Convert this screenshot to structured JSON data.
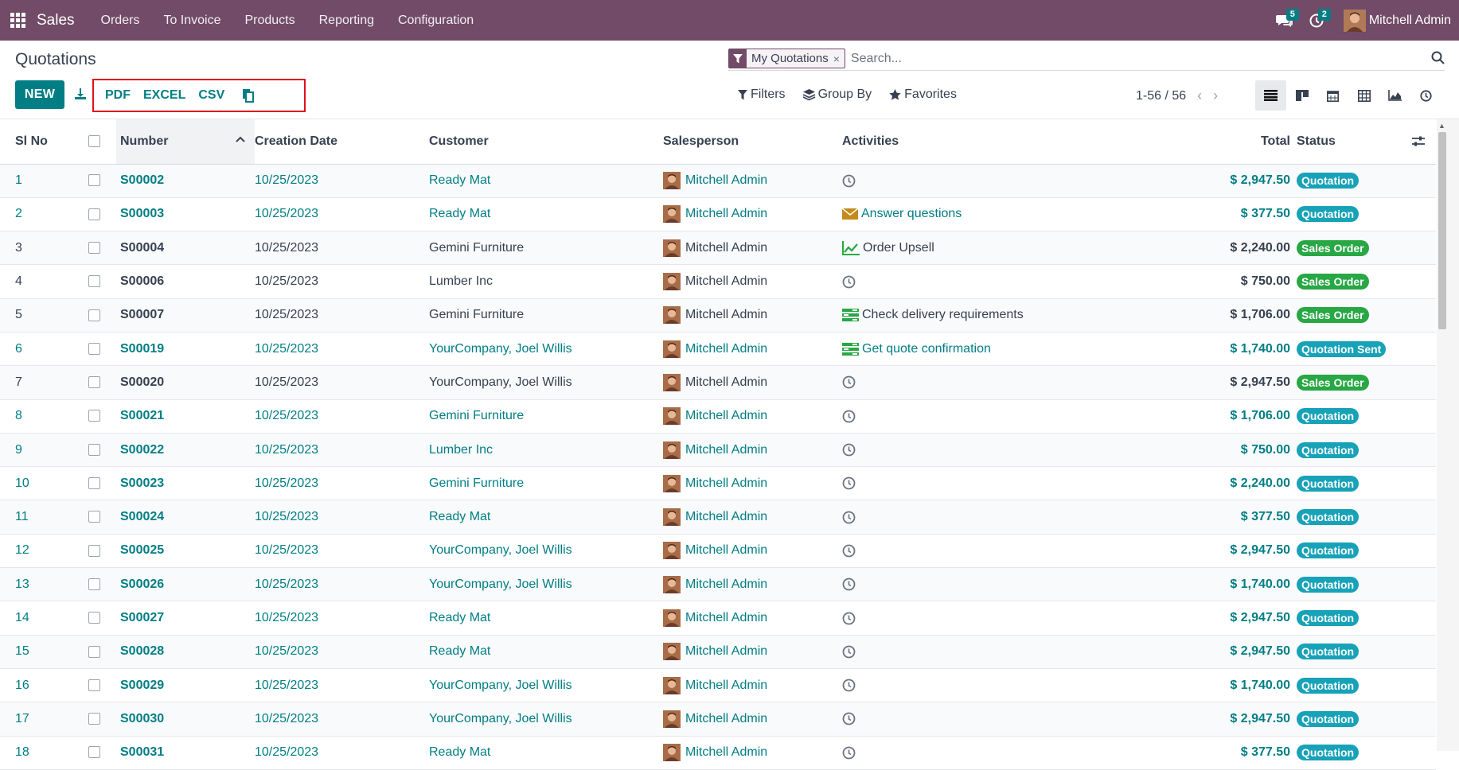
{
  "navbar": {
    "app_name": "Sales",
    "menu": [
      "Orders",
      "To Invoice",
      "Products",
      "Reporting",
      "Configuration"
    ],
    "messages_count": "5",
    "activities_count": "2",
    "user_name": "Mitchell Admin"
  },
  "control_panel": {
    "title": "Quotations",
    "new_label": "NEW",
    "export_buttons": [
      "PDF",
      "EXCEL",
      "CSV"
    ],
    "search": {
      "facet": "My Quotations",
      "placeholder": "Search..."
    },
    "filters_label": "Filters",
    "groupby_label": "Group By",
    "favorites_label": "Favorites",
    "pager": "1-56 / 56"
  },
  "table": {
    "headers": {
      "sl": "Sl No",
      "number": "Number",
      "date": "Creation Date",
      "customer": "Customer",
      "salesperson": "Salesperson",
      "activities": "Activities",
      "total": "Total",
      "status": "Status"
    },
    "rows": [
      {
        "sl": "1",
        "number": "S00002",
        "date": "10/25/2023",
        "customer": "Ready Mat",
        "salesperson": "Mitchell Admin",
        "activity": "",
        "activity_icon": "clock-icon",
        "total": "$ 2,947.50",
        "status": "Quotation",
        "status_color": "#17a2b8",
        "linked": true
      },
      {
        "sl": "2",
        "number": "S00003",
        "date": "10/25/2023",
        "customer": "Ready Mat",
        "salesperson": "Mitchell Admin",
        "activity": "Answer questions",
        "activity_icon": "envelope-icon",
        "total": "$ 377.50",
        "status": "Quotation",
        "status_color": "#17a2b8",
        "linked": true
      },
      {
        "sl": "3",
        "number": "S00004",
        "date": "10/25/2023",
        "customer": "Gemini Furniture",
        "salesperson": "Mitchell Admin",
        "activity": "Order Upsell",
        "activity_icon": "chart-line-icon",
        "total": "$ 2,240.00",
        "status": "Sales Order",
        "status_color": "#28a745",
        "linked": false
      },
      {
        "sl": "4",
        "number": "S00006",
        "date": "10/25/2023",
        "customer": "Lumber Inc",
        "salesperson": "Mitchell Admin",
        "activity": "",
        "activity_icon": "clock-icon",
        "total": "$ 750.00",
        "status": "Sales Order",
        "status_color": "#28a745",
        "linked": false
      },
      {
        "sl": "5",
        "number": "S00007",
        "date": "10/25/2023",
        "customer": "Gemini Furniture",
        "salesperson": "Mitchell Admin",
        "activity": "Check delivery requirements",
        "activity_icon": "tasks-icon",
        "total": "$ 1,706.00",
        "status": "Sales Order",
        "status_color": "#28a745",
        "linked": false
      },
      {
        "sl": "6",
        "number": "S00019",
        "date": "10/25/2023",
        "customer": "YourCompany, Joel Willis",
        "salesperson": "Mitchell Admin",
        "activity": "Get quote confirmation",
        "activity_icon": "tasks-icon",
        "total": "$ 1,740.00",
        "status": "Quotation Sent",
        "status_color": "#17a2b8",
        "linked": true
      },
      {
        "sl": "7",
        "number": "S00020",
        "date": "10/25/2023",
        "customer": "YourCompany, Joel Willis",
        "salesperson": "Mitchell Admin",
        "activity": "",
        "activity_icon": "clock-icon",
        "total": "$ 2,947.50",
        "status": "Sales Order",
        "status_color": "#28a745",
        "linked": false
      },
      {
        "sl": "8",
        "number": "S00021",
        "date": "10/25/2023",
        "customer": "Gemini Furniture",
        "salesperson": "Mitchell Admin",
        "activity": "",
        "activity_icon": "clock-icon",
        "total": "$ 1,706.00",
        "status": "Quotation",
        "status_color": "#17a2b8",
        "linked": true
      },
      {
        "sl": "9",
        "number": "S00022",
        "date": "10/25/2023",
        "customer": "Lumber Inc",
        "salesperson": "Mitchell Admin",
        "activity": "",
        "activity_icon": "clock-icon",
        "total": "$ 750.00",
        "status": "Quotation",
        "status_color": "#17a2b8",
        "linked": true
      },
      {
        "sl": "10",
        "number": "S00023",
        "date": "10/25/2023",
        "customer": "Gemini Furniture",
        "salesperson": "Mitchell Admin",
        "activity": "",
        "activity_icon": "clock-icon",
        "total": "$ 2,240.00",
        "status": "Quotation",
        "status_color": "#17a2b8",
        "linked": true
      },
      {
        "sl": "11",
        "number": "S00024",
        "date": "10/25/2023",
        "customer": "Ready Mat",
        "salesperson": "Mitchell Admin",
        "activity": "",
        "activity_icon": "clock-icon",
        "total": "$ 377.50",
        "status": "Quotation",
        "status_color": "#17a2b8",
        "linked": true
      },
      {
        "sl": "12",
        "number": "S00025",
        "date": "10/25/2023",
        "customer": "YourCompany, Joel Willis",
        "salesperson": "Mitchell Admin",
        "activity": "",
        "activity_icon": "clock-icon",
        "total": "$ 2,947.50",
        "status": "Quotation",
        "status_color": "#17a2b8",
        "linked": true
      },
      {
        "sl": "13",
        "number": "S00026",
        "date": "10/25/2023",
        "customer": "YourCompany, Joel Willis",
        "salesperson": "Mitchell Admin",
        "activity": "",
        "activity_icon": "clock-icon",
        "total": "$ 1,740.00",
        "status": "Quotation",
        "status_color": "#17a2b8",
        "linked": true
      },
      {
        "sl": "14",
        "number": "S00027",
        "date": "10/25/2023",
        "customer": "Ready Mat",
        "salesperson": "Mitchell Admin",
        "activity": "",
        "activity_icon": "clock-icon",
        "total": "$ 2,947.50",
        "status": "Quotation",
        "status_color": "#17a2b8",
        "linked": true
      },
      {
        "sl": "15",
        "number": "S00028",
        "date": "10/25/2023",
        "customer": "Ready Mat",
        "salesperson": "Mitchell Admin",
        "activity": "",
        "activity_icon": "clock-icon",
        "total": "$ 2,947.50",
        "status": "Quotation",
        "status_color": "#17a2b8",
        "linked": true
      },
      {
        "sl": "16",
        "number": "S00029",
        "date": "10/25/2023",
        "customer": "YourCompany, Joel Willis",
        "salesperson": "Mitchell Admin",
        "activity": "",
        "activity_icon": "clock-icon",
        "total": "$ 1,740.00",
        "status": "Quotation",
        "status_color": "#17a2b8",
        "linked": true
      },
      {
        "sl": "17",
        "number": "S00030",
        "date": "10/25/2023",
        "customer": "YourCompany, Joel Willis",
        "salesperson": "Mitchell Admin",
        "activity": "",
        "activity_icon": "clock-icon",
        "total": "$ 2,947.50",
        "status": "Quotation",
        "status_color": "#17a2b8",
        "linked": true
      },
      {
        "sl": "18",
        "number": "S00031",
        "date": "10/25/2023",
        "customer": "Ready Mat",
        "salesperson": "Mitchell Admin",
        "activity": "",
        "activity_icon": "clock-icon",
        "total": "$ 377.50",
        "status": "Quotation",
        "status_color": "#17a2b8",
        "linked": true
      }
    ]
  },
  "colors": {
    "brand": "#714b67",
    "accent": "#017e84",
    "quotation": "#17a2b8",
    "sales_order": "#28a745",
    "highlight_box": "#e0101c"
  }
}
